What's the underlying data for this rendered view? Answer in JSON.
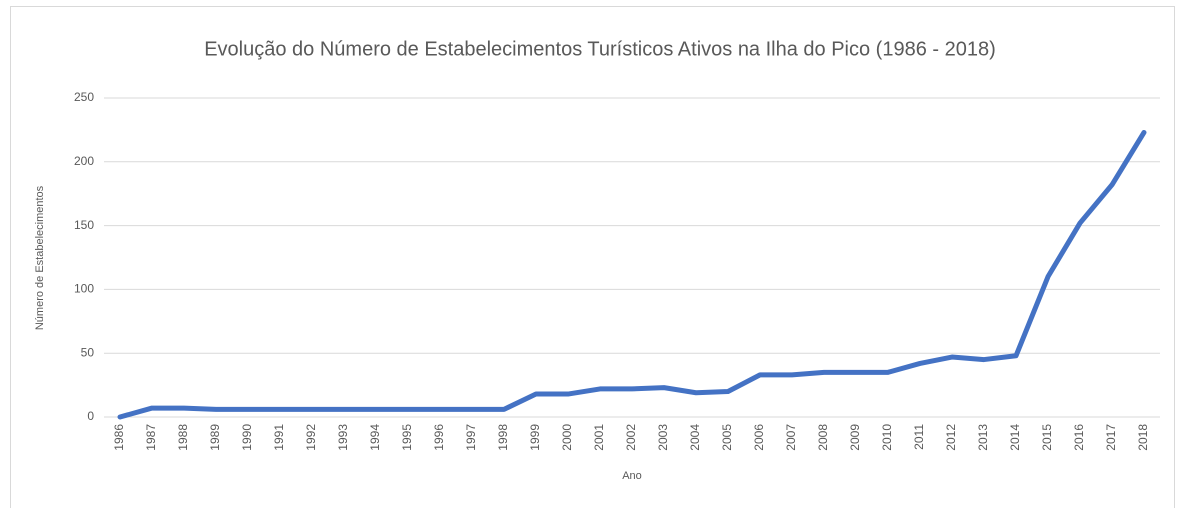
{
  "chart_data": {
    "type": "line",
    "title": "Evolução do Número de Estabelecimentos Turísticos Ativos na Ilha do Pico (1986 - 2018)",
    "x_label": "Ano",
    "y_label": "Número de Estabelecimentos",
    "categories": [
      "1986",
      "1987",
      "1988",
      "1989",
      "1990",
      "1991",
      "1992",
      "1993",
      "1994",
      "1995",
      "1996",
      "1997",
      "1998",
      "1999",
      "2000",
      "2001",
      "2002",
      "2003",
      "2004",
      "2005",
      "2006",
      "2007",
      "2008",
      "2009",
      "2010",
      "2011",
      "2012",
      "2013",
      "2014",
      "2015",
      "2016",
      "2017",
      "2018"
    ],
    "series": [
      {
        "name": "Número de Estabelecimentos",
        "color": "#4472c4",
        "values": [
          0,
          7,
          7,
          6,
          6,
          6,
          6,
          6,
          6,
          6,
          6,
          6,
          6,
          18,
          18,
          22,
          22,
          23,
          19,
          20,
          33,
          33,
          35,
          35,
          35,
          42,
          47,
          45,
          48,
          110,
          152,
          182,
          223
        ]
      }
    ],
    "ylim": [
      0,
      250
    ],
    "yticks": [
      0,
      50,
      100,
      150,
      200,
      250
    ],
    "grid": true
  }
}
